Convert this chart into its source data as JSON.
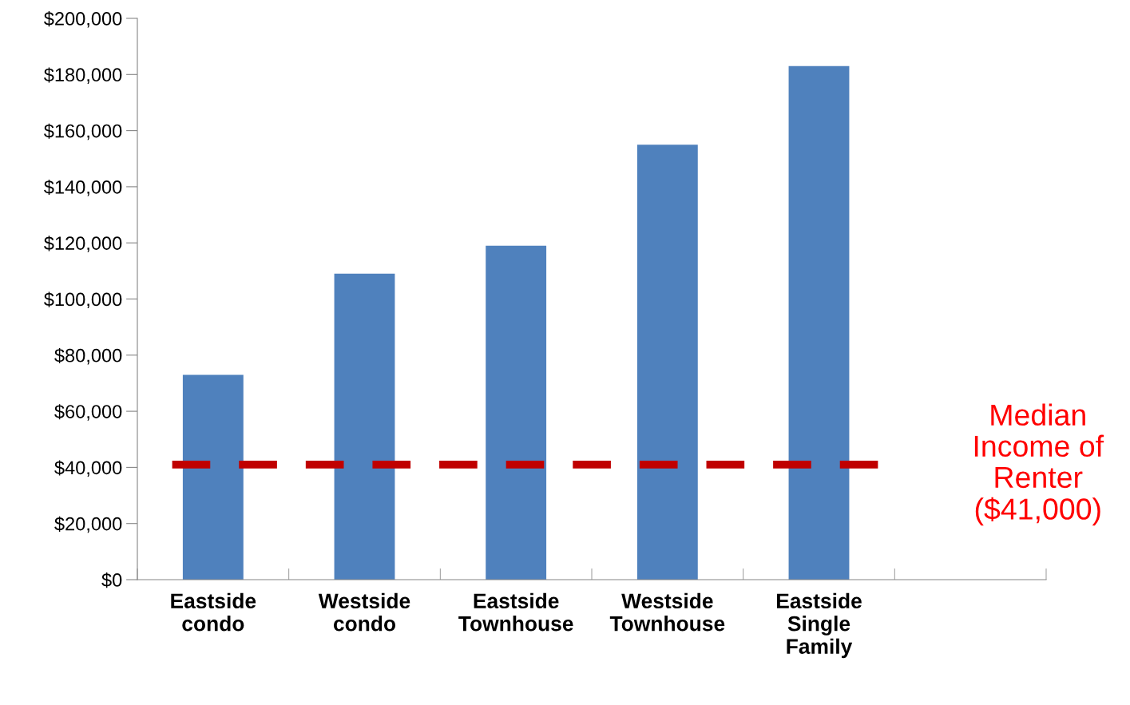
{
  "chart_data": {
    "type": "bar",
    "categories": [
      "Eastside\ncondo",
      "Westside\ncondo",
      "Eastside\nTownhouse",
      "Westside\nTownhouse",
      "Eastside\nSingle\nFamily",
      null
    ],
    "values": [
      73000,
      109000,
      119000,
      155000,
      183000,
      null
    ],
    "color": "#4f81bd",
    "ylim": [
      0,
      200000
    ],
    "yticks": [
      {
        "value": 0,
        "label": "$0"
      },
      {
        "value": 20000,
        "label": "$20,000"
      },
      {
        "value": 40000,
        "label": "$40,000"
      },
      {
        "value": 60000,
        "label": "$60,000"
      },
      {
        "value": 80000,
        "label": "$80,000"
      },
      {
        "value": 100000,
        "label": "$100,000"
      },
      {
        "value": 120000,
        "label": "$120,000"
      },
      {
        "value": 140000,
        "label": "$140,000"
      },
      {
        "value": 160000,
        "label": "$160,000"
      },
      {
        "value": 180000,
        "label": "$180,000"
      },
      {
        "value": 200000,
        "label": "$200,000"
      }
    ],
    "ref_lines": [
      {
        "axis": "y",
        "value": 41000,
        "label": "Median\nIncome of\nRenter\n($41,000)",
        "color": "#c00000",
        "line_style": "dashed"
      }
    ],
    "grid": false,
    "legend": false
  }
}
